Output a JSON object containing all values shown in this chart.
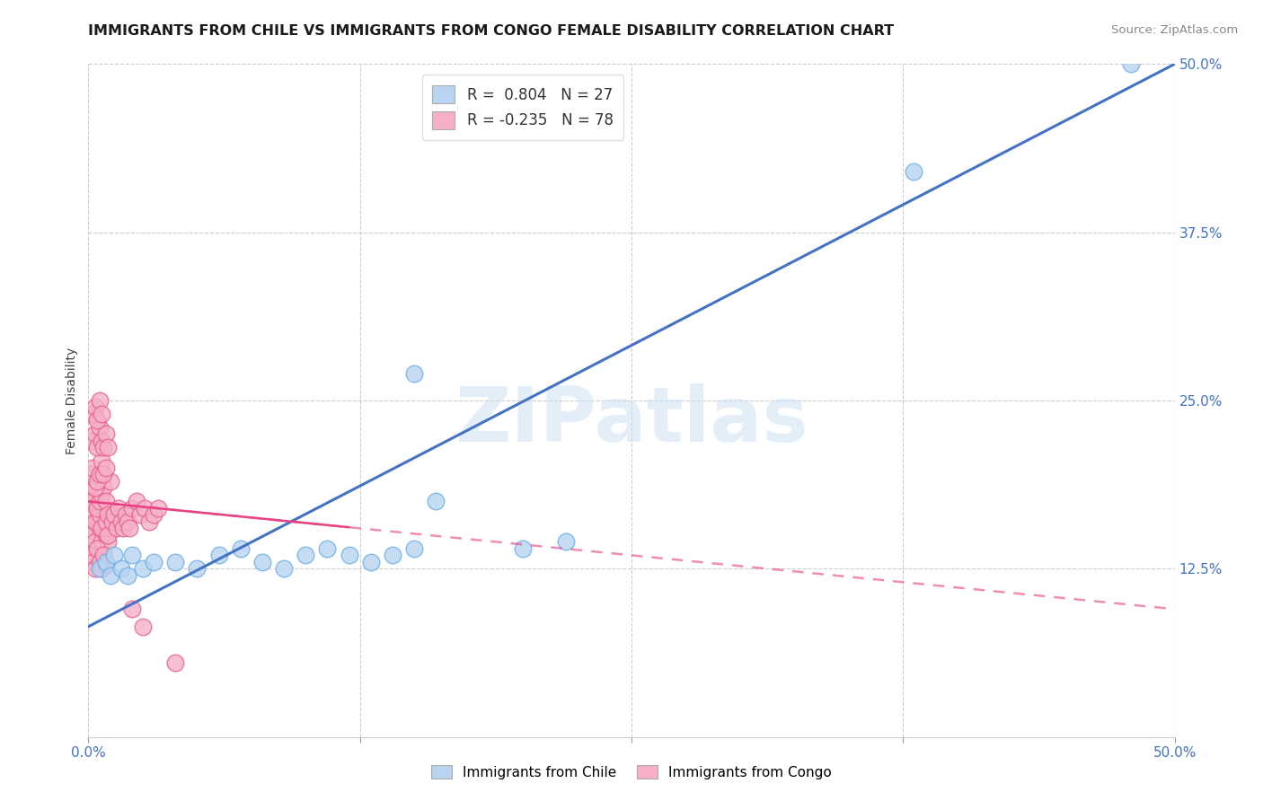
{
  "title": "IMMIGRANTS FROM CHILE VS IMMIGRANTS FROM CONGO FEMALE DISABILITY CORRELATION CHART",
  "source": "Source: ZipAtlas.com",
  "ylabel": "Female Disability",
  "xlim": [
    0.0,
    0.5
  ],
  "ylim": [
    0.0,
    0.5
  ],
  "xtick_values": [
    0.0,
    0.125,
    0.25,
    0.375,
    0.5
  ],
  "xtick_labels": [
    "0.0%",
    "",
    "",
    "",
    "50.0%"
  ],
  "ytick_values": [
    0.125,
    0.25,
    0.375,
    0.5
  ],
  "ytick_labels": [
    "12.5%",
    "25.0%",
    "37.5%",
    "50.0%"
  ],
  "watermark": "ZIPatlas",
  "legend_chile_r": "0.804",
  "legend_chile_n": "27",
  "legend_congo_r": "-0.235",
  "legend_congo_n": "78",
  "chile_color": "#b8d4f0",
  "chile_edge": "#6aaee8",
  "congo_color": "#f5b0c8",
  "congo_edge": "#e8608c",
  "chile_line_color": "#4472c4",
  "congo_line_color": "#e84080",
  "background_color": "#ffffff",
  "grid_color": "#cccccc",
  "chile_scatter_x": [
    0.005,
    0.008,
    0.01,
    0.012,
    0.015,
    0.018,
    0.02,
    0.025,
    0.03,
    0.04,
    0.05,
    0.06,
    0.07,
    0.08,
    0.09,
    0.1,
    0.11,
    0.12,
    0.13,
    0.14,
    0.15,
    0.16,
    0.2,
    0.22,
    0.15,
    0.38,
    0.48
  ],
  "chile_scatter_y": [
    0.125,
    0.13,
    0.12,
    0.135,
    0.125,
    0.12,
    0.135,
    0.125,
    0.13,
    0.13,
    0.125,
    0.135,
    0.14,
    0.13,
    0.125,
    0.135,
    0.14,
    0.135,
    0.13,
    0.135,
    0.14,
    0.175,
    0.14,
    0.145,
    0.27,
    0.42,
    0.5
  ],
  "congo_scatter_x": [
    0.001,
    0.002,
    0.003,
    0.004,
    0.005,
    0.006,
    0.007,
    0.008,
    0.009,
    0.01,
    0.001,
    0.002,
    0.003,
    0.004,
    0.005,
    0.006,
    0.007,
    0.008,
    0.009,
    0.01,
    0.001,
    0.002,
    0.003,
    0.004,
    0.005,
    0.006,
    0.007,
    0.008,
    0.009,
    0.01,
    0.001,
    0.002,
    0.003,
    0.004,
    0.005,
    0.006,
    0.007,
    0.008,
    0.011,
    0.012,
    0.013,
    0.014,
    0.015,
    0.016,
    0.017,
    0.018,
    0.019,
    0.02,
    0.022,
    0.024,
    0.026,
    0.028,
    0.03,
    0.032,
    0.002,
    0.003,
    0.004,
    0.005,
    0.006,
    0.007,
    0.008,
    0.009,
    0.002,
    0.003,
    0.004,
    0.005,
    0.006,
    0.001,
    0.002,
    0.003,
    0.004,
    0.005,
    0.006,
    0.007,
    0.008,
    0.02,
    0.025,
    0.04
  ],
  "congo_scatter_y": [
    0.155,
    0.15,
    0.145,
    0.16,
    0.155,
    0.145,
    0.165,
    0.15,
    0.145,
    0.155,
    0.17,
    0.165,
    0.16,
    0.175,
    0.165,
    0.155,
    0.17,
    0.16,
    0.15,
    0.165,
    0.18,
    0.175,
    0.185,
    0.17,
    0.175,
    0.18,
    0.185,
    0.175,
    0.165,
    0.19,
    0.195,
    0.2,
    0.185,
    0.19,
    0.195,
    0.205,
    0.195,
    0.2,
    0.16,
    0.165,
    0.155,
    0.17,
    0.16,
    0.155,
    0.165,
    0.16,
    0.155,
    0.17,
    0.175,
    0.165,
    0.17,
    0.16,
    0.165,
    0.17,
    0.22,
    0.225,
    0.215,
    0.23,
    0.22,
    0.215,
    0.225,
    0.215,
    0.24,
    0.245,
    0.235,
    0.25,
    0.24,
    0.135,
    0.13,
    0.125,
    0.14,
    0.13,
    0.125,
    0.135,
    0.128,
    0.095,
    0.082,
    0.055
  ],
  "chile_line_x0": 0.0,
  "chile_line_y0": 0.082,
  "chile_line_x1": 0.5,
  "chile_line_y1": 0.5,
  "congo_line_x0": 0.0,
  "congo_line_y0": 0.175,
  "congo_line_x1": 0.5,
  "congo_line_y1": 0.095
}
